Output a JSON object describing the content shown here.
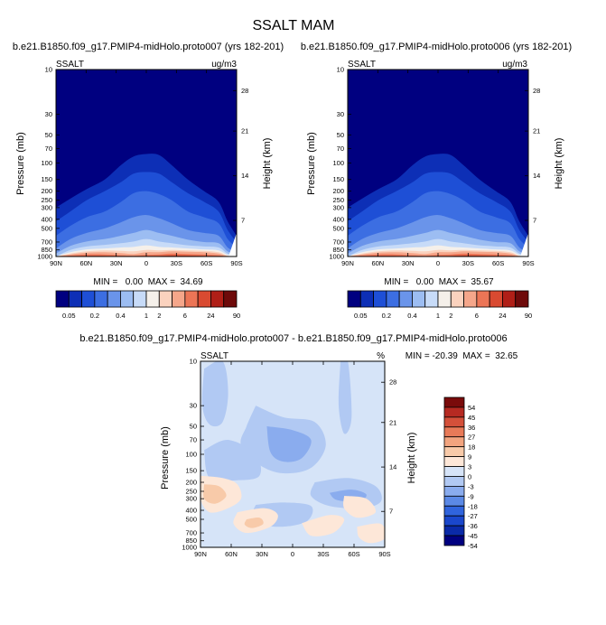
{
  "title": "SSALT MAM",
  "colors": {
    "abs_scale": [
      "#000080",
      "#0d2fb6",
      "#1e4fd6",
      "#3c6ee2",
      "#6a94ea",
      "#9cbdf2",
      "#c7dbf8",
      "#f5f0ea",
      "#fbd2be",
      "#f5a68a",
      "#ec7556",
      "#d94a31",
      "#b01f17",
      "#6e0a0a"
    ],
    "diff_scale": [
      "#000080",
      "#0a2aa8",
      "#1a47cc",
      "#3064dd",
      "#5b89e6",
      "#8aacee",
      "#b1c9f3",
      "#d6e4f8",
      "#fde7d8",
      "#f8caa9",
      "#f2a47f",
      "#e87a58",
      "#d4503a",
      "#b62a22",
      "#7a0b0b"
    ]
  },
  "chart_data": [
    {
      "type": "heatmap",
      "name": "panel1",
      "title": "b.e21.B1850.f09_g17.PMIP4-midHolo.proto007 (yrs 182-201)",
      "left_label": "SSALT",
      "right_label": "ug/m3",
      "ylabel": "Pressure (mb)",
      "ylabel_right": "Height (km)",
      "x_ticks": [
        "90N",
        "60N",
        "30N",
        "0",
        "30S",
        "60S",
        "90S"
      ],
      "y_ticks": [
        "10",
        "30",
        "50",
        "70",
        "100",
        "150",
        "200",
        "250",
        "300",
        "400",
        "500",
        "700",
        "850",
        "1000"
      ],
      "y_ticks_right": [
        "28",
        "21",
        "14",
        "7"
      ],
      "stats": "MIN =   0.00  MAX =  34.69",
      "colorbar_labels": [
        "0.05",
        "0.2",
        "0.4",
        "1",
        "2",
        "6",
        "24",
        "90"
      ],
      "value_range": [
        0.0,
        34.69
      ]
    },
    {
      "type": "heatmap",
      "name": "panel2",
      "title": "b.e21.B1850.f09_g17.PMIP4-midHolo.proto006 (yrs 182-201)",
      "left_label": "SSALT",
      "right_label": "ug/m3",
      "ylabel": "Pressure (mb)",
      "ylabel_right": "Height (km)",
      "x_ticks": [
        "90N",
        "60N",
        "30N",
        "0",
        "30S",
        "60S",
        "90S"
      ],
      "y_ticks": [
        "10",
        "30",
        "50",
        "70",
        "100",
        "150",
        "200",
        "250",
        "300",
        "400",
        "500",
        "700",
        "850",
        "1000"
      ],
      "y_ticks_right": [
        "28",
        "21",
        "14",
        "7"
      ],
      "stats": "MIN =   0.00  MAX =  35.67",
      "colorbar_labels": [
        "0.05",
        "0.2",
        "0.4",
        "1",
        "2",
        "6",
        "24",
        "90"
      ],
      "value_range": [
        0.0,
        35.67
      ]
    },
    {
      "type": "heatmap",
      "name": "difference",
      "title": "b.e21.B1850.f09_g17.PMIP4-midHolo.proto007 - b.e21.B1850.f09_g17.PMIP4-midHolo.proto006",
      "left_label": "SSALT",
      "right_label": "%",
      "ylabel": "Pressure (mb)",
      "ylabel_right": "Height (km)",
      "x_ticks": [
        "90N",
        "60N",
        "30N",
        "0",
        "30S",
        "60S",
        "90S"
      ],
      "y_ticks": [
        "10",
        "30",
        "50",
        "70",
        "100",
        "150",
        "200",
        "250",
        "300",
        "400",
        "500",
        "700",
        "850",
        "1000"
      ],
      "y_ticks_right": [
        "28",
        "21",
        "14",
        "7"
      ],
      "stats": "MIN = -20.39  MAX =  32.65",
      "colorbar_labels": [
        "54",
        "45",
        "36",
        "27",
        "18",
        "9",
        "3",
        "0",
        "-3",
        "-9",
        "-18",
        "-27",
        "-36",
        "-45",
        "-54"
      ],
      "value_range": [
        -20.39,
        32.65
      ]
    }
  ]
}
